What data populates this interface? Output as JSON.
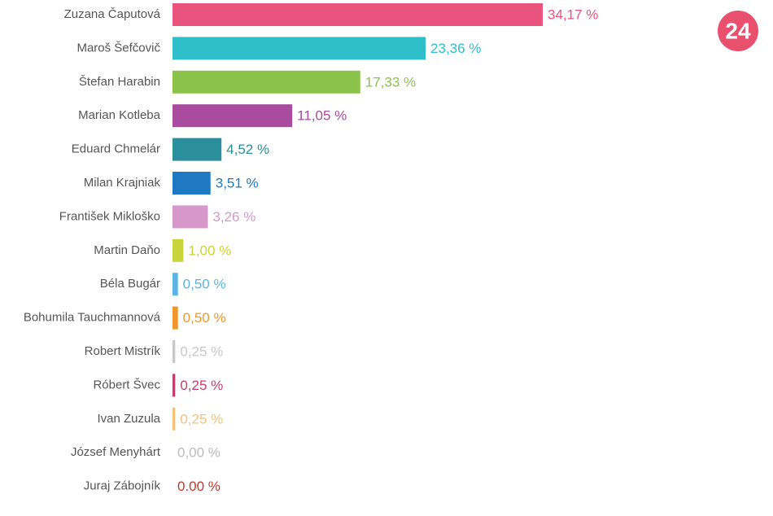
{
  "chart_data": {
    "type": "bar",
    "orientation": "horizontal",
    "categories": [
      "Zuzana Čaputová",
      "Maroš Šefčovič",
      "Štefan Harabin",
      "Marian Kotleba",
      "Eduard Chmelár",
      "Milan Krajniak",
      "František Mikloško",
      "Martin Daňo",
      "Béla Bugár",
      "Bohumila Tauchmannová",
      "Robert Mistrík",
      "Róbert Švec",
      "Ivan Zuzula",
      "József Menyhárt",
      "Juraj Zábojník"
    ],
    "values": [
      34.17,
      23.36,
      17.33,
      11.05,
      4.52,
      3.51,
      3.26,
      1.0,
      0.5,
      0.5,
      0.25,
      0.25,
      0.25,
      0.0,
      0.0
    ],
    "value_labels": [
      "34,17 %",
      "23,36 %",
      "17,33 %",
      "11,05 %",
      "4,52 %",
      "3,51 %",
      "3,26 %",
      "1,00 %",
      "0,50 %",
      "0,50 %",
      "0,25 %",
      "0,25 %",
      "0,25 %",
      "0,00 %",
      "0.00 %"
    ],
    "colors": [
      "#e8547e",
      "#2ebfca",
      "#8bc34a",
      "#a94b9f",
      "#2a8f9a",
      "#1e78c2",
      "#d598c8",
      "#c8d43a",
      "#5ab5e6",
      "#f0962a",
      "#c8c8c8",
      "#c0406a",
      "#f5c27a",
      "#bbbbbb",
      "#c0392b"
    ]
  },
  "logo": "24"
}
